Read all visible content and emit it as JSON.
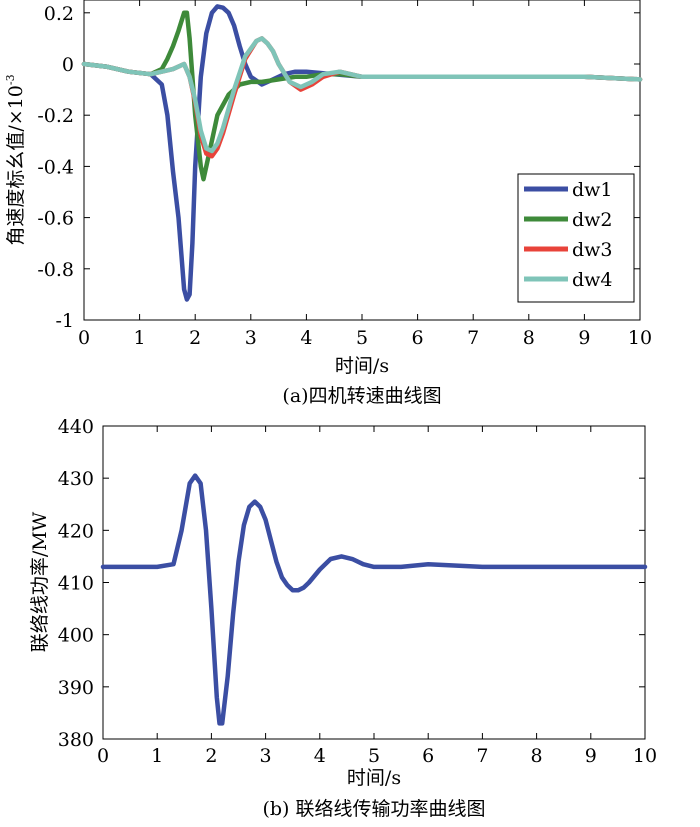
{
  "chart_data": [
    {
      "type": "line",
      "caption": "(a)四机转速曲线图",
      "xlabel": "时间/s",
      "ylabel": "角速度标幺值/×10",
      "ylabel_exponent": "-3",
      "xlim": [
        0,
        10
      ],
      "ylim": [
        -1,
        0.25
      ],
      "xticks": [
        "0",
        "1",
        "2",
        "3",
        "4",
        "5",
        "6",
        "7",
        "8",
        "9",
        "10"
      ],
      "yticks": [
        "0.2",
        "0",
        "-0.2",
        "-0.4",
        "-0.6",
        "-0.8",
        "-1"
      ],
      "ytick_values": [
        0.2,
        0,
        -0.2,
        -0.4,
        -0.6,
        -0.8,
        -1
      ],
      "legend_position": "bottom-right",
      "series": [
        {
          "name": "dw1",
          "color": "#3b4ea3",
          "x": [
            0,
            0.4,
            0.8,
            1.2,
            1.4,
            1.5,
            1.6,
            1.7,
            1.8,
            1.85,
            1.9,
            1.95,
            2.0,
            2.1,
            2.2,
            2.3,
            2.4,
            2.5,
            2.6,
            2.7,
            2.8,
            2.9,
            3.0,
            3.2,
            3.4,
            3.6,
            3.8,
            4.0,
            4.5,
            5.0,
            6.0,
            7.0,
            8.0,
            9.0,
            10.0
          ],
          "y": [
            0,
            -0.01,
            -0.03,
            -0.04,
            -0.08,
            -0.2,
            -0.42,
            -0.6,
            -0.88,
            -0.92,
            -0.9,
            -0.7,
            -0.4,
            -0.05,
            0.12,
            0.2,
            0.225,
            0.22,
            0.2,
            0.15,
            0.07,
            0.0,
            -0.05,
            -0.08,
            -0.06,
            -0.04,
            -0.03,
            -0.03,
            -0.04,
            -0.05,
            -0.05,
            -0.05,
            -0.05,
            -0.05,
            -0.06
          ]
        },
        {
          "name": "dw2",
          "color": "#3e8a3a",
          "x": [
            0,
            0.4,
            0.8,
            1.2,
            1.4,
            1.5,
            1.6,
            1.7,
            1.8,
            1.85,
            1.9,
            2.0,
            2.1,
            2.15,
            2.2,
            2.3,
            2.4,
            2.6,
            2.8,
            3.0,
            3.2,
            3.5,
            3.8,
            4.0,
            4.3,
            4.6,
            5.0,
            6.0,
            7.0,
            8.0,
            9.0,
            10.0
          ],
          "y": [
            0,
            -0.01,
            -0.03,
            -0.04,
            -0.02,
            0.02,
            0.07,
            0.13,
            0.2,
            0.2,
            0.1,
            -0.2,
            -0.4,
            -0.45,
            -0.4,
            -0.3,
            -0.2,
            -0.12,
            -0.08,
            -0.07,
            -0.07,
            -0.06,
            -0.05,
            -0.05,
            -0.04,
            -0.04,
            -0.05,
            -0.05,
            -0.05,
            -0.05,
            -0.05,
            -0.06
          ]
        },
        {
          "name": "dw3",
          "color": "#e8433a",
          "x": [
            0,
            0.4,
            0.8,
            1.2,
            1.6,
            1.8,
            1.9,
            2.0,
            2.1,
            2.2,
            2.3,
            2.4,
            2.5,
            2.7,
            2.9,
            3.1,
            3.2,
            3.3,
            3.4,
            3.5,
            3.7,
            3.9,
            4.1,
            4.3,
            4.6,
            5.0,
            6.0,
            7.0,
            8.0,
            9.0,
            10.0
          ],
          "y": [
            0,
            -0.01,
            -0.03,
            -0.04,
            -0.02,
            0.0,
            -0.05,
            -0.15,
            -0.28,
            -0.35,
            -0.36,
            -0.33,
            -0.27,
            -0.12,
            0.02,
            0.09,
            0.1,
            0.08,
            0.05,
            0.0,
            -0.07,
            -0.1,
            -0.08,
            -0.05,
            -0.03,
            -0.05,
            -0.05,
            -0.05,
            -0.05,
            -0.05,
            -0.06
          ]
        },
        {
          "name": "dw4",
          "color": "#7fc4b8",
          "x": [
            0,
            0.4,
            0.8,
            1.2,
            1.6,
            1.8,
            1.9,
            2.0,
            2.1,
            2.2,
            2.3,
            2.4,
            2.5,
            2.7,
            2.9,
            3.1,
            3.2,
            3.3,
            3.4,
            3.5,
            3.7,
            3.9,
            4.1,
            4.3,
            4.6,
            5.0,
            6.0,
            7.0,
            8.0,
            9.0,
            10.0
          ],
          "y": [
            0,
            -0.01,
            -0.03,
            -0.04,
            -0.02,
            0.0,
            -0.05,
            -0.14,
            -0.26,
            -0.33,
            -0.34,
            -0.31,
            -0.25,
            -0.1,
            0.03,
            0.09,
            0.1,
            0.08,
            0.05,
            0.0,
            -0.07,
            -0.09,
            -0.07,
            -0.04,
            -0.03,
            -0.05,
            -0.05,
            -0.05,
            -0.05,
            -0.05,
            -0.06
          ]
        }
      ]
    },
    {
      "type": "line",
      "caption": "(b) 联络线传输功率曲线图",
      "xlabel": "时间/s",
      "ylabel": "联络线功率/MW",
      "xlim": [
        0,
        10
      ],
      "ylim": [
        380,
        440
      ],
      "xticks": [
        "0",
        "1",
        "2",
        "3",
        "4",
        "5",
        "6",
        "7",
        "8",
        "9",
        "10"
      ],
      "yticks": [
        "440",
        "430",
        "420",
        "410",
        "400",
        "390",
        "380"
      ],
      "ytick_values": [
        440,
        430,
        420,
        410,
        400,
        390,
        380
      ],
      "series": [
        {
          "color": "#3b4ea3",
          "x": [
            0,
            0.5,
            1.0,
            1.3,
            1.45,
            1.6,
            1.7,
            1.8,
            1.9,
            2.0,
            2.1,
            2.15,
            2.2,
            2.3,
            2.4,
            2.5,
            2.6,
            2.7,
            2.8,
            2.9,
            3.0,
            3.1,
            3.2,
            3.3,
            3.4,
            3.5,
            3.6,
            3.7,
            3.8,
            4.0,
            4.2,
            4.4,
            4.6,
            4.8,
            5.0,
            5.5,
            6.0,
            7.0,
            8.0,
            9.0,
            10.0
          ],
          "y": [
            413,
            413,
            413,
            413.5,
            420,
            429,
            430.5,
            429,
            420,
            405,
            388,
            383,
            383,
            392,
            404,
            414,
            421,
            424.5,
            425.5,
            424.5,
            422,
            418,
            414,
            411,
            409.5,
            408.5,
            408.5,
            409,
            410,
            412.5,
            414.5,
            415,
            414.5,
            413.5,
            413,
            413,
            413.5,
            413,
            413,
            413,
            413
          ]
        }
      ]
    }
  ]
}
